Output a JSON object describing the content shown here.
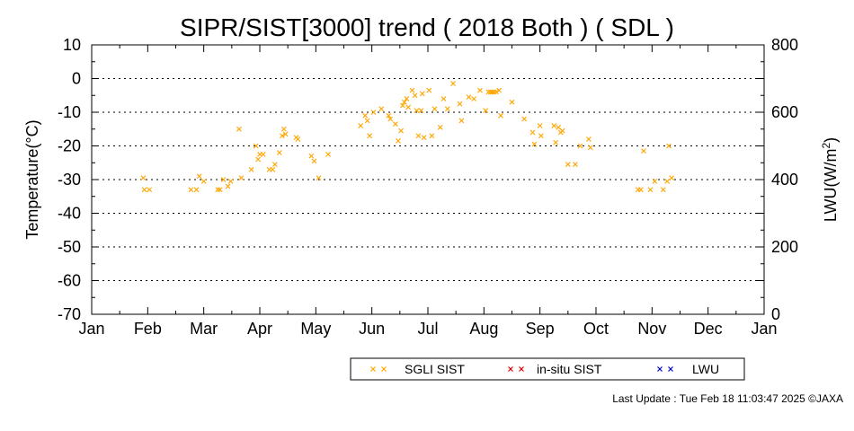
{
  "chart_data": {
    "type": "scatter",
    "title": "SIPR/SIST[3000] trend ( 2018 Both ) ( SDL )",
    "ylabel": "Temperature(°C)",
    "y2label_main": "LWU(W/m",
    "y2label_sup": "2",
    "y2label_end": ")",
    "ylim": [
      -70,
      10
    ],
    "y2lim": [
      0,
      800
    ],
    "xlim_month": [
      1,
      13
    ],
    "grid": "horizontal-dotted",
    "x_tick_labels": [
      "Jan",
      "Feb",
      "Mar",
      "Apr",
      "May",
      "Jun",
      "Jul",
      "Aug",
      "Sep",
      "Oct",
      "Nov",
      "Dec",
      "Jan"
    ],
    "y_tick_labels": [
      "10",
      "0",
      "-10",
      "-20",
      "-30",
      "-40",
      "-50",
      "-60",
      "-70"
    ],
    "y2_tick_labels": [
      "800",
      "600",
      "400",
      "200",
      "0"
    ],
    "series": [
      {
        "name": "SGLI SIST",
        "color": "#ffa500",
        "points": [
          [
            1.92,
            -29.5
          ],
          [
            1.94,
            -33
          ],
          [
            2.03,
            -33
          ],
          [
            2.77,
            -33
          ],
          [
            2.87,
            -33
          ],
          [
            2.92,
            -29
          ],
          [
            3.0,
            -30.5
          ],
          [
            3.25,
            -33
          ],
          [
            3.29,
            -33
          ],
          [
            3.35,
            -30
          ],
          [
            3.43,
            -32
          ],
          [
            3.48,
            -30.5
          ],
          [
            3.63,
            -15
          ],
          [
            3.67,
            -29.5
          ],
          [
            3.85,
            -27
          ],
          [
            3.93,
            -20
          ],
          [
            3.97,
            -24
          ],
          [
            4.0,
            -22.5
          ],
          [
            4.06,
            -22.5
          ],
          [
            4.17,
            -27
          ],
          [
            4.23,
            -27
          ],
          [
            4.27,
            -25.5
          ],
          [
            4.35,
            -22
          ],
          [
            4.4,
            -17
          ],
          [
            4.43,
            -15
          ],
          [
            4.46,
            -16.5
          ],
          [
            4.65,
            -17.5
          ],
          [
            4.68,
            -18
          ],
          [
            4.92,
            -23
          ],
          [
            4.97,
            -24.5
          ],
          [
            5.05,
            -29.5
          ],
          [
            5.22,
            -22.5
          ],
          [
            5.8,
            -14
          ],
          [
            5.88,
            -11
          ],
          [
            5.92,
            -12.5
          ],
          [
            5.96,
            -17
          ],
          [
            6.03,
            -10
          ],
          [
            6.17,
            -9
          ],
          [
            6.3,
            -11
          ],
          [
            6.33,
            -12
          ],
          [
            6.42,
            -13.5
          ],
          [
            6.47,
            -18.5
          ],
          [
            6.52,
            -15.5
          ],
          [
            6.55,
            -8
          ],
          [
            6.58,
            -7
          ],
          [
            6.62,
            -6
          ],
          [
            6.65,
            -8.5
          ],
          [
            6.72,
            -3.5
          ],
          [
            6.77,
            -5
          ],
          [
            6.8,
            -9.5
          ],
          [
            6.83,
            -17
          ],
          [
            6.88,
            -9.5
          ],
          [
            6.9,
            -4.5
          ],
          [
            6.93,
            -17.5
          ],
          [
            7.02,
            -3.5
          ],
          [
            7.07,
            -17
          ],
          [
            7.12,
            -9
          ],
          [
            7.22,
            -14.5
          ],
          [
            7.28,
            -6
          ],
          [
            7.35,
            -9
          ],
          [
            7.45,
            -1.5
          ],
          [
            7.57,
            -7.5
          ],
          [
            7.6,
            -12.5
          ],
          [
            7.73,
            -5.5
          ],
          [
            7.82,
            -6
          ],
          [
            7.93,
            -3.5
          ],
          [
            8.03,
            -9.5
          ],
          [
            8.08,
            -4
          ],
          [
            8.12,
            -4
          ],
          [
            8.15,
            -4
          ],
          [
            8.18,
            -4
          ],
          [
            8.22,
            -4
          ],
          [
            8.27,
            -3.5
          ],
          [
            8.3,
            -11
          ],
          [
            8.5,
            -7
          ],
          [
            8.72,
            -12
          ],
          [
            8.87,
            -16
          ],
          [
            8.9,
            -19.5
          ],
          [
            9.0,
            -14
          ],
          [
            9.02,
            -17
          ],
          [
            9.25,
            -14
          ],
          [
            9.28,
            -19
          ],
          [
            9.33,
            -14.5
          ],
          [
            9.37,
            -16
          ],
          [
            9.4,
            -15.5
          ],
          [
            9.5,
            -25.5
          ],
          [
            9.63,
            -25.5
          ],
          [
            9.72,
            -20
          ],
          [
            9.87,
            -18
          ],
          [
            9.9,
            -20.5
          ],
          [
            10.75,
            -33
          ],
          [
            10.8,
            -33
          ],
          [
            10.85,
            -21.5
          ],
          [
            10.97,
            -33
          ],
          [
            11.05,
            -30.5
          ],
          [
            11.2,
            -33
          ],
          [
            11.27,
            -30.5
          ],
          [
            11.3,
            -20
          ],
          [
            11.35,
            -29.5
          ]
        ]
      },
      {
        "name": "in-situ SIST",
        "color": "#e00000",
        "points": []
      },
      {
        "name": "LWU",
        "color": "#0000cc",
        "points": []
      }
    ]
  },
  "footer": {
    "last_update": "Last Update : Tue Feb 18 11:03:47 2025  ©JAXA"
  }
}
